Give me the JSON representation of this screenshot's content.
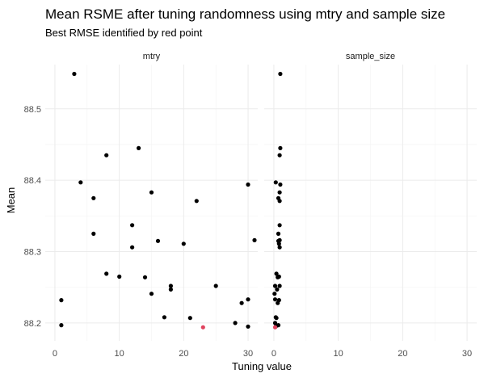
{
  "chart_data": {
    "type": "scatter",
    "title": "Mean RSME after tuning randomness using mtry and sample size",
    "subtitle": "Best RMSE identified by red point",
    "xlabel": "Tuning value",
    "ylabel": "Mean",
    "xlim": [
      -1.5,
      31.5
    ],
    "ylim": [
      88.175,
      88.562
    ],
    "x_ticks": [
      0,
      10,
      20,
      30
    ],
    "y_ticks": [
      88.2,
      88.3,
      88.4,
      88.5
    ],
    "x_tick_labels": [
      "0",
      "10",
      "20",
      "30"
    ],
    "y_tick_labels": [
      "88.2",
      "88.3",
      "88.4",
      "88.5"
    ],
    "grid": true,
    "colors": {
      "point": "#000000",
      "best_point": "#e0435e",
      "grid_major": "#ebebeb",
      "grid_minor": "#f3f3f3"
    },
    "panels": [
      {
        "name": "mtry",
        "points": [
          {
            "x": 3,
            "y": 88.549
          },
          {
            "x": 13,
            "y": 88.445
          },
          {
            "x": 8,
            "y": 88.435
          },
          {
            "x": 4,
            "y": 88.397
          },
          {
            "x": 30,
            "y": 88.394
          },
          {
            "x": 6,
            "y": 88.375
          },
          {
            "x": 15,
            "y": 88.383
          },
          {
            "x": 22,
            "y": 88.371
          },
          {
            "x": 12,
            "y": 88.337
          },
          {
            "x": 6,
            "y": 88.325
          },
          {
            "x": 31,
            "y": 88.316
          },
          {
            "x": 16,
            "y": 88.315
          },
          {
            "x": 20,
            "y": 88.311
          },
          {
            "x": 12,
            "y": 88.306
          },
          {
            "x": 8,
            "y": 88.269
          },
          {
            "x": 10,
            "y": 88.265
          },
          {
            "x": 14,
            "y": 88.264
          },
          {
            "x": 18,
            "y": 88.252
          },
          {
            "x": 25,
            "y": 88.252
          },
          {
            "x": 18,
            "y": 88.247
          },
          {
            "x": 15,
            "y": 88.241
          },
          {
            "x": 1,
            "y": 88.232
          },
          {
            "x": 30,
            "y": 88.233
          },
          {
            "x": 29,
            "y": 88.228
          },
          {
            "x": 17,
            "y": 88.208
          },
          {
            "x": 21,
            "y": 88.207
          },
          {
            "x": 28,
            "y": 88.2
          },
          {
            "x": 1,
            "y": 88.197
          },
          {
            "x": 30,
            "y": 88.195
          },
          {
            "x": 23,
            "y": 88.194,
            "best": true
          }
        ]
      },
      {
        "name": "sample_size",
        "points": [
          {
            "x": 1.0,
            "y": 88.549
          },
          {
            "x": 1.0,
            "y": 88.445
          },
          {
            "x": 0.9,
            "y": 88.435
          },
          {
            "x": 0.3,
            "y": 88.397
          },
          {
            "x": 1.0,
            "y": 88.394
          },
          {
            "x": 0.9,
            "y": 88.383
          },
          {
            "x": 0.7,
            "y": 88.375
          },
          {
            "x": 0.9,
            "y": 88.371
          },
          {
            "x": 0.9,
            "y": 88.337
          },
          {
            "x": 0.7,
            "y": 88.325
          },
          {
            "x": 0.9,
            "y": 88.316
          },
          {
            "x": 0.7,
            "y": 88.315
          },
          {
            "x": 0.8,
            "y": 88.311
          },
          {
            "x": 0.9,
            "y": 88.306
          },
          {
            "x": 0.4,
            "y": 88.269
          },
          {
            "x": 0.8,
            "y": 88.265
          },
          {
            "x": 0.6,
            "y": 88.264
          },
          {
            "x": 0.2,
            "y": 88.252
          },
          {
            "x": 0.9,
            "y": 88.252
          },
          {
            "x": 0.5,
            "y": 88.247
          },
          {
            "x": 0.1,
            "y": 88.241
          },
          {
            "x": 0.8,
            "y": 88.232
          },
          {
            "x": 0.2,
            "y": 88.233
          },
          {
            "x": 0.6,
            "y": 88.228
          },
          {
            "x": 0.3,
            "y": 88.208
          },
          {
            "x": 0.4,
            "y": 88.207
          },
          {
            "x": 0.2,
            "y": 88.2
          },
          {
            "x": 0.7,
            "y": 88.197
          },
          {
            "x": 0.3,
            "y": 88.195
          },
          {
            "x": 0.2,
            "y": 88.194,
            "best": true
          }
        ]
      }
    ]
  }
}
